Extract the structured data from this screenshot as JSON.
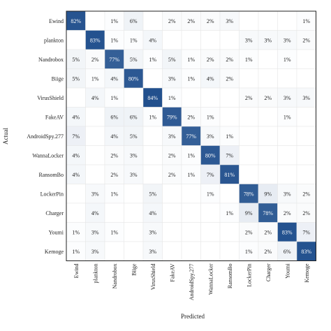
{
  "chart_data": {
    "type": "heatmap",
    "title": "",
    "xlabel": "Predicted",
    "ylabel": "Actual",
    "value_suffix": "%",
    "grid": true,
    "legend": false,
    "colors": {
      "low": "#ffffff",
      "high": "#1f4e8c",
      "text_dark": "#222222",
      "text_light": "#ffffff",
      "border": "#222222"
    },
    "rows": [
      "Ewind",
      "plankton",
      "Nandrobox",
      "Biige",
      "VirusShield",
      "FakeAV",
      "AndroidSpy.277",
      "WannaLocker",
      "RansomBo",
      "LockerPin",
      "Charger",
      "Youmi",
      "Kemoge"
    ],
    "columns": [
      "Ewind",
      "plankton",
      "Nandrobox",
      "Biige",
      "VirusShield",
      "FakeAV",
      "AndroidSpy.277",
      "WannaLocker",
      "RansomBo",
      "LockerPin",
      "Charger",
      "Youmi",
      "Kemoge"
    ],
    "values": [
      [
        82,
        null,
        1,
        6,
        null,
        2,
        2,
        2,
        3,
        null,
        null,
        null,
        1
      ],
      [
        null,
        83,
        1,
        1,
        4,
        null,
        null,
        null,
        null,
        3,
        3,
        3,
        2
      ],
      [
        5,
        2,
        77,
        5,
        1,
        5,
        1,
        2,
        2,
        1,
        null,
        1,
        null
      ],
      [
        5,
        1,
        4,
        80,
        null,
        3,
        1,
        4,
        2,
        null,
        null,
        null,
        null
      ],
      [
        null,
        4,
        1,
        null,
        84,
        1,
        null,
        null,
        null,
        2,
        2,
        3,
        3
      ],
      [
        4,
        null,
        6,
        6,
        1,
        79,
        2,
        1,
        null,
        null,
        null,
        1,
        null
      ],
      [
        7,
        null,
        4,
        5,
        null,
        3,
        77,
        3,
        1,
        null,
        null,
        null,
        null
      ],
      [
        4,
        null,
        2,
        3,
        null,
        2,
        1,
        80,
        7,
        null,
        null,
        null,
        null
      ],
      [
        4,
        null,
        2,
        3,
        null,
        2,
        1,
        7,
        81,
        null,
        null,
        null,
        null
      ],
      [
        null,
        3,
        1,
        null,
        5,
        null,
        null,
        1,
        null,
        78,
        9,
        3,
        2
      ],
      [
        null,
        4,
        null,
        null,
        4,
        null,
        null,
        null,
        1,
        9,
        78,
        2,
        2
      ],
      [
        1,
        3,
        1,
        null,
        3,
        null,
        null,
        null,
        null,
        2,
        2,
        83,
        7
      ],
      [
        1,
        3,
        null,
        null,
        3,
        null,
        null,
        null,
        null,
        1,
        2,
        6,
        83
      ]
    ]
  }
}
